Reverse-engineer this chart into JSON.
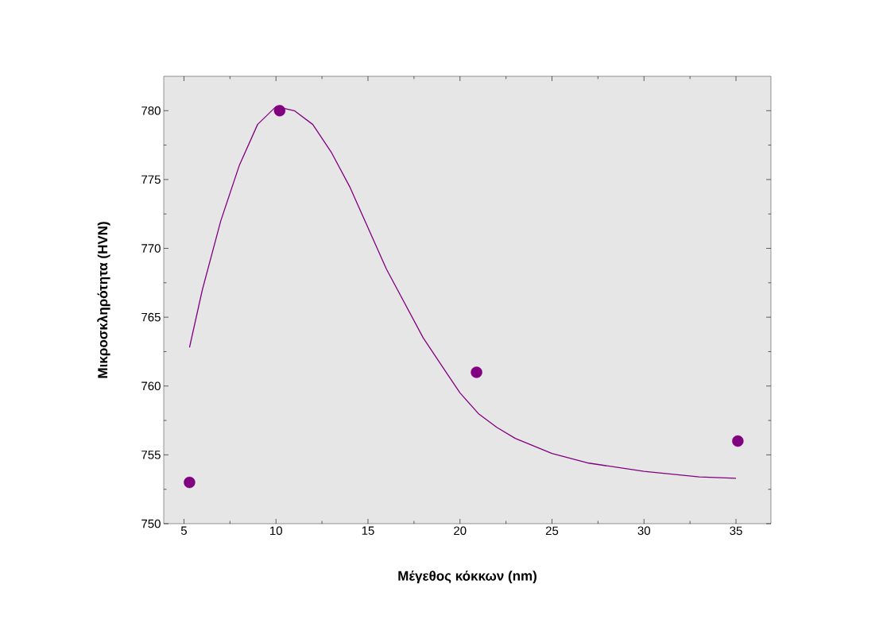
{
  "chart_data": {
    "type": "scatter",
    "xlabel": "Μέγεθος κόκκων (nm)",
    "ylabel": "Μικροσκληρότητα (HVN)",
    "xlim": [
      3.9,
      36.9
    ],
    "ylim": [
      750,
      782.5
    ],
    "xticks": [
      5,
      10,
      15,
      20,
      25,
      30,
      35
    ],
    "yticks": [
      750,
      755,
      760,
      765,
      770,
      775,
      780
    ],
    "grid": false,
    "series": [
      {
        "color": "#800080",
        "marker": "circle",
        "x": [
          5.3,
          10.2,
          20.9,
          35.1
        ],
        "values": [
          753,
          780,
          761,
          756
        ]
      },
      {
        "type": "line",
        "color": "#800080",
        "marker": "none",
        "line_style": "solid",
        "x": [
          5.3,
          6,
          7,
          8,
          9,
          10,
          11,
          12,
          13,
          14,
          15,
          16,
          17,
          18,
          19,
          20,
          21,
          22,
          23,
          25,
          27,
          30,
          33,
          35
        ],
        "values": [
          762.8,
          767,
          772,
          776,
          779,
          780.3,
          780,
          779,
          777,
          774.5,
          771.5,
          768.5,
          766,
          763.5,
          761.5,
          759.5,
          758,
          757,
          756.2,
          755.1,
          754.4,
          753.8,
          753.4,
          753.3
        ]
      }
    ]
  }
}
